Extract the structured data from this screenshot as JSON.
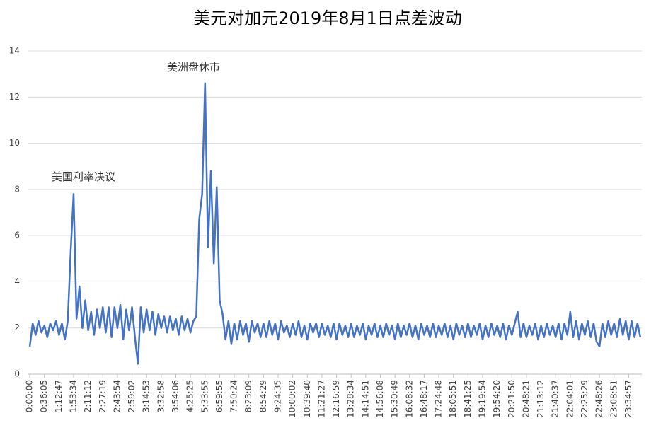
{
  "chart_data": {
    "type": "line",
    "title": "美元对加元2019年8月1日点差波动",
    "annotations": [
      "美国利率决议",
      "美洲盘休市"
    ],
    "color": "#4472c4",
    "grid": true,
    "ylim": [
      0,
      14
    ],
    "yticks": [
      0,
      2,
      4,
      6,
      8,
      10,
      12,
      14
    ],
    "categories": [
      "0:00:00",
      null,
      null,
      null,
      null,
      "0:36:05",
      null,
      null,
      null,
      null,
      "1:12:47",
      null,
      null,
      null,
      null,
      "1:53:34",
      null,
      null,
      null,
      null,
      "2:11:12",
      null,
      null,
      null,
      null,
      "2:27:19",
      null,
      null,
      null,
      null,
      "2:43:54",
      null,
      null,
      null,
      null,
      "2:59:02",
      null,
      null,
      null,
      null,
      "3:14:53",
      null,
      null,
      null,
      null,
      "3:32:58",
      null,
      null,
      null,
      null,
      "3:54:06",
      null,
      null,
      null,
      null,
      "4:25:25",
      null,
      null,
      null,
      null,
      "5:33:55",
      null,
      null,
      null,
      null,
      "6:59:55",
      null,
      null,
      null,
      null,
      "7:50:24",
      null,
      null,
      null,
      null,
      "8:23:09",
      null,
      null,
      null,
      null,
      "8:54:29",
      null,
      null,
      null,
      null,
      "9:24:35",
      null,
      null,
      null,
      null,
      "10:00:02",
      null,
      null,
      null,
      null,
      "10:39:40",
      null,
      null,
      null,
      null,
      "11:21:27",
      null,
      null,
      null,
      null,
      "12:16:59",
      null,
      null,
      null,
      null,
      "13:28:34",
      null,
      null,
      null,
      null,
      "14:14:51",
      null,
      null,
      null,
      null,
      "14:56:08",
      null,
      null,
      null,
      null,
      "15:30:49",
      null,
      null,
      null,
      null,
      "16:08:32",
      null,
      null,
      null,
      null,
      "16:48:17",
      null,
      null,
      null,
      null,
      "17:24:48",
      null,
      null,
      null,
      null,
      "18:05:51",
      null,
      null,
      null,
      null,
      "18:41:25",
      null,
      null,
      null,
      null,
      "19:19:54",
      null,
      null,
      null,
      null,
      "19:54:20",
      null,
      null,
      null,
      null,
      "20:21:50",
      null,
      null,
      null,
      null,
      "20:48:21",
      null,
      null,
      null,
      null,
      "21:13:12",
      null,
      null,
      null,
      null,
      "21:40:37",
      null,
      null,
      null,
      null,
      "22:04:01",
      null,
      null,
      null,
      null,
      "22:25:29",
      null,
      null,
      null,
      null,
      "22:48:26",
      null,
      null,
      null,
      null,
      "23:08:51",
      null,
      null,
      null,
      null,
      "23:34:57",
      null,
      null,
      null,
      null
    ],
    "values": [
      1.2,
      2.2,
      1.7,
      2.3,
      1.8,
      2.1,
      1.6,
      2.2,
      1.9,
      2.3,
      1.7,
      2.2,
      1.5,
      2.3,
      5.3,
      7.8,
      2.4,
      3.8,
      2.0,
      3.2,
      1.9,
      2.7,
      1.7,
      2.8,
      2.0,
      2.9,
      1.8,
      2.9,
      1.6,
      2.9,
      2.0,
      3.0,
      1.5,
      2.8,
      1.9,
      2.9,
      1.6,
      0.45,
      2.9,
      1.8,
      2.8,
      1.9,
      2.7,
      1.7,
      2.6,
      2.0,
      2.5,
      1.8,
      2.5,
      1.9,
      2.4,
      1.7,
      2.5,
      1.9,
      2.4,
      1.8,
      2.3,
      2.5,
      6.7,
      7.8,
      12.6,
      5.5,
      8.8,
      4.8,
      8.1,
      3.2,
      2.6,
      1.5,
      2.3,
      1.3,
      2.2,
      1.5,
      2.3,
      1.7,
      2.2,
      1.4,
      2.3,
      1.8,
      2.2,
      1.6,
      2.2,
      1.6,
      2.3,
      1.7,
      2.2,
      1.5,
      2.3,
      1.8,
      2.1,
      1.6,
      2.2,
      1.7,
      2.3,
      1.6,
      2.1,
      1.5,
      2.2,
      1.8,
      2.2,
      1.6,
      2.2,
      1.7,
      2.1,
      1.6,
      2.2,
      1.5,
      2.2,
      1.7,
      2.1,
      1.6,
      2.2,
      1.6,
      2.1,
      1.7,
      2.2,
      1.5,
      2.1,
      1.7,
      2.2,
      1.6,
      2.1,
      1.6,
      2.2,
      1.7,
      2.1,
      1.5,
      2.2,
      1.6,
      2.1,
      1.7,
      2.2,
      1.6,
      2.1,
      1.5,
      2.2,
      1.7,
      2.1,
      1.6,
      2.2,
      1.6,
      2.1,
      1.7,
      2.2,
      1.6,
      2.1,
      1.5,
      2.2,
      1.7,
      2.1,
      1.6,
      2.2,
      1.6,
      2.1,
      1.7,
      2.2,
      1.5,
      2.1,
      1.6,
      2.2,
      1.7,
      2.1,
      1.6,
      2.2,
      1.5,
      2.1,
      1.7,
      2.2,
      2.7,
      1.6,
      2.2,
      1.6,
      2.1,
      1.7,
      2.2,
      1.5,
      2.1,
      1.6,
      2.2,
      1.7,
      2.1,
      1.6,
      2.2,
      1.5,
      2.2,
      1.7,
      2.7,
      1.6,
      2.3,
      1.5,
      2.2,
      1.7,
      2.3,
      1.6,
      2.2,
      1.4,
      1.2,
      2.2,
      1.6,
      2.3,
      1.7,
      2.2,
      1.6,
      2.4,
      1.7,
      2.3,
      1.5,
      2.3,
      1.6,
      2.2,
      1.6
    ]
  }
}
